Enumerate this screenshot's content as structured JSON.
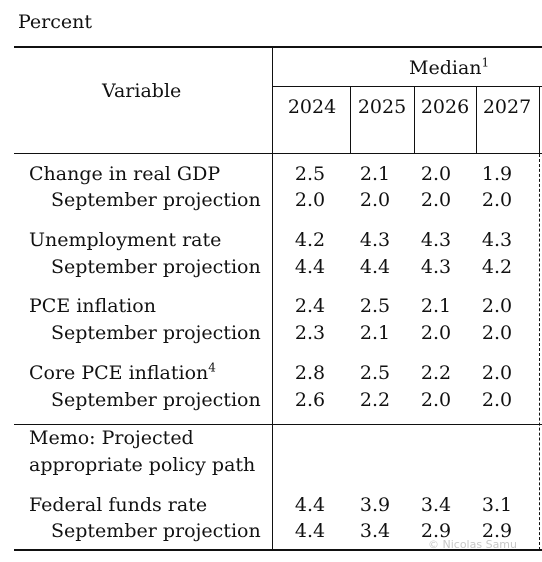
{
  "unit_label": "Percent",
  "header": {
    "variable": "Variable",
    "median": "Median",
    "median_note": "1",
    "years": [
      "2024",
      "2025",
      "2026",
      "2027"
    ]
  },
  "rows": [
    {
      "label": "Change in real GDP",
      "note": "",
      "values": [
        "2.5",
        "2.1",
        "2.0",
        "1.9"
      ]
    },
    {
      "label": "September projection",
      "note": "",
      "values": [
        "2.0",
        "2.0",
        "2.0",
        "2.0"
      ]
    },
    {
      "label": "Unemployment rate",
      "note": "",
      "values": [
        "4.2",
        "4.3",
        "4.3",
        "4.3"
      ]
    },
    {
      "label": "September projection",
      "note": "",
      "values": [
        "4.4",
        "4.4",
        "4.3",
        "4.2"
      ]
    },
    {
      "label": "PCE inflation",
      "note": "",
      "values": [
        "2.4",
        "2.5",
        "2.1",
        "2.0"
      ]
    },
    {
      "label": "September projection",
      "note": "",
      "values": [
        "2.3",
        "2.1",
        "2.0",
        "2.0"
      ]
    },
    {
      "label": "Core PCE inflation",
      "note": "4",
      "values": [
        "2.8",
        "2.5",
        "2.2",
        "2.0"
      ]
    },
    {
      "label": "September projection",
      "note": "",
      "values": [
        "2.6",
        "2.2",
        "2.0",
        "2.0"
      ]
    }
  ],
  "memo": {
    "line1": "Memo: Projected",
    "line2": "appropriate policy path"
  },
  "policy_rows": [
    {
      "label": "Federal funds rate",
      "values": [
        "4.4",
        "3.9",
        "3.4",
        "3.1"
      ]
    },
    {
      "label": "September projection",
      "values": [
        "4.4",
        "3.4",
        "2.9",
        "2.9"
      ]
    }
  ],
  "watermark": "© Nicolas Samu"
}
